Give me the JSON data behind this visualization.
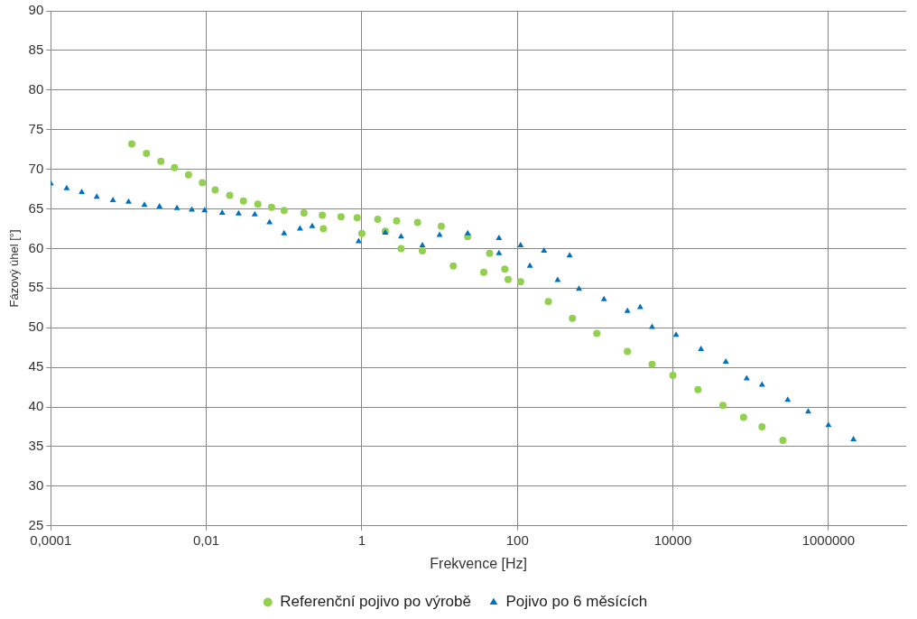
{
  "chart_data": {
    "type": "scatter",
    "xlabel": "Frekvence [Hz]",
    "ylabel": "Fázový úhel [°]",
    "log": "x",
    "xlim": [
      0.0001,
      10000000
    ],
    "xticks": [
      {
        "value": 0.0001,
        "label": "0,0001"
      },
      {
        "value": 0.01,
        "label": "0,01"
      },
      1,
      100,
      10000,
      1000000
    ],
    "ylim": [
      25,
      90
    ],
    "yticks": [
      25,
      30,
      35,
      40,
      45,
      50,
      55,
      60,
      65,
      70,
      75,
      80,
      85,
      90
    ],
    "grid": true,
    "legend": "bottom",
    "series": [
      {
        "name": "Referenční pojivo po výrobě",
        "color": "#92d050",
        "marker": "circle",
        "x": [
          0.0011,
          0.0017,
          0.0026,
          0.0039,
          0.0059,
          0.0089,
          0.013,
          0.02,
          0.03,
          0.046,
          0.069,
          0.1,
          0.18,
          0.31,
          0.54,
          0.87,
          1.6,
          2.8,
          5.2,
          10.5,
          23,
          44,
          69,
          110,
          250,
          510,
          1050,
          2600,
          5400,
          10000,
          21000,
          44000,
          81000,
          140000,
          260000,
          3.2,
          6.0,
          15,
          37,
          76,
          1,
          0.32,
          2
        ],
        "values": [
          73.2,
          72.0,
          71.0,
          70.2,
          69.3,
          68.3,
          67.4,
          66.7,
          66.0,
          65.6,
          65.2,
          64.8,
          64.5,
          64.2,
          64.0,
          63.9,
          63.7,
          63.5,
          63.3,
          62.8,
          61.5,
          59.4,
          57.4,
          55.8,
          53.3,
          51.2,
          49.3,
          47.0,
          45.4,
          44.0,
          42.2,
          40.2,
          38.7,
          37.5,
          35.8,
          60.0,
          59.7,
          57.8,
          57.0,
          56.1,
          61.9,
          62.5,
          62.2
        ]
      },
      {
        "name": "Pojivo po 6 měsících",
        "color": "#0070c0",
        "marker": "triangle",
        "x": [
          0.0001,
          0.00016,
          0.00025,
          0.00039,
          0.00063,
          0.001,
          0.0016,
          0.0025,
          0.0042,
          0.0065,
          0.0095,
          0.016,
          0.026,
          0.042,
          0.065,
          0.1,
          0.16,
          0.23,
          0.91,
          2,
          3.2,
          6.0,
          10,
          23,
          58,
          110,
          220,
          470,
          58,
          145,
          330,
          620,
          1300,
          2600,
          3800,
          5400,
          11000,
          23000,
          48000,
          89000,
          140000,
          300000,
          550000,
          1000000,
          2100000
        ],
        "values": [
          68.2,
          67.6,
          67.1,
          66.5,
          66.1,
          65.9,
          65.5,
          65.3,
          65.1,
          64.9,
          64.8,
          64.5,
          64.4,
          64.3,
          63.3,
          61.9,
          62.5,
          62.8,
          60.9,
          62.0,
          61.5,
          60.4,
          61.7,
          61.9,
          61.3,
          60.4,
          59.7,
          59.1,
          59.4,
          57.8,
          56.0,
          54.9,
          53.6,
          52.1,
          52.6,
          50.1,
          49.1,
          47.3,
          45.7,
          43.6,
          42.8,
          40.9,
          39.4,
          37.7,
          35.9
        ]
      }
    ]
  }
}
